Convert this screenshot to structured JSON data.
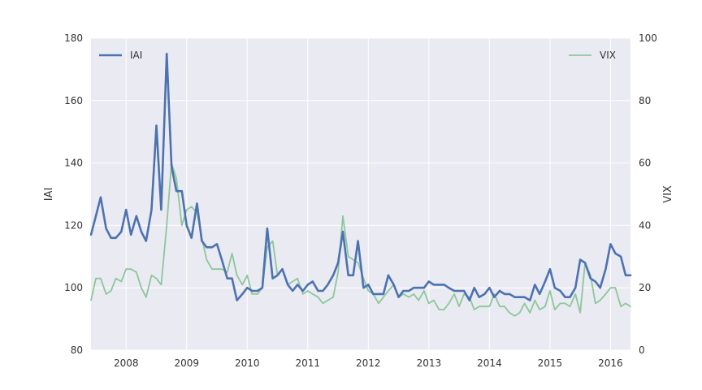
{
  "chart_data": {
    "type": "line",
    "ylabel_left": "IAI",
    "ylabel_right": "VIX",
    "x_range": [
      2007.42,
      2016.33
    ],
    "x_ticks": [
      2008,
      2009,
      2010,
      2011,
      2012,
      2013,
      2014,
      2015,
      2016
    ],
    "x_tick_labels": [
      "2008",
      "2009",
      "2010",
      "2011",
      "2012",
      "2013",
      "2014",
      "2015",
      "2016"
    ],
    "y_left_range": [
      80,
      180
    ],
    "y_left_ticks": [
      80,
      100,
      120,
      140,
      160,
      180
    ],
    "y_left_tick_labels": [
      "80",
      "100",
      "120",
      "140",
      "160",
      "180"
    ],
    "y_right_range": [
      0,
      100
    ],
    "y_right_ticks": [
      0,
      20,
      40,
      60,
      80,
      100
    ],
    "y_right_tick_labels": [
      "0",
      "20",
      "40",
      "60",
      "80",
      "100"
    ],
    "grid": true,
    "background": "#eaeaf2",
    "series": [
      {
        "name": "IAI",
        "axis": "left",
        "color": "#4c72b0",
        "legend_position": "top-left",
        "x": [
          2007.42,
          2007.5,
          2007.58,
          2007.67,
          2007.75,
          2007.83,
          2007.92,
          2008.0,
          2008.08,
          2008.17,
          2008.25,
          2008.33,
          2008.42,
          2008.5,
          2008.58,
          2008.67,
          2008.75,
          2008.83,
          2008.92,
          2009.0,
          2009.08,
          2009.17,
          2009.25,
          2009.33,
          2009.42,
          2009.5,
          2009.58,
          2009.67,
          2009.75,
          2009.83,
          2009.92,
          2010.0,
          2010.08,
          2010.17,
          2010.25,
          2010.33,
          2010.42,
          2010.5,
          2010.58,
          2010.67,
          2010.75,
          2010.83,
          2010.92,
          2011.0,
          2011.08,
          2011.17,
          2011.25,
          2011.33,
          2011.42,
          2011.5,
          2011.58,
          2011.67,
          2011.75,
          2011.83,
          2011.92,
          2012.0,
          2012.08,
          2012.17,
          2012.25,
          2012.33,
          2012.42,
          2012.5,
          2012.58,
          2012.67,
          2012.75,
          2012.83,
          2012.92,
          2013.0,
          2013.08,
          2013.17,
          2013.25,
          2013.33,
          2013.42,
          2013.5,
          2013.58,
          2013.67,
          2013.75,
          2013.83,
          2013.92,
          2014.0,
          2014.08,
          2014.17,
          2014.25,
          2014.33,
          2014.42,
          2014.5,
          2014.58,
          2014.67,
          2014.75,
          2014.83,
          2014.92,
          2015.0,
          2015.08,
          2015.17,
          2015.25,
          2015.33,
          2015.42,
          2015.5,
          2015.58,
          2015.67,
          2015.75,
          2015.83,
          2015.92,
          2016.0,
          2016.08,
          2016.17,
          2016.25,
          2016.33
        ],
        "values": [
          117,
          123,
          129,
          119,
          116,
          116,
          118,
          125,
          117,
          123,
          118,
          115,
          125,
          152,
          125,
          175,
          139,
          131,
          131,
          120,
          116,
          127,
          115,
          113,
          113,
          114,
          109,
          103,
          103,
          96,
          98,
          100,
          99,
          99,
          100,
          119,
          103,
          104,
          106,
          101,
          99,
          101,
          99,
          101,
          102,
          99,
          99,
          101,
          104,
          108,
          118,
          104,
          104,
          115,
          100,
          101,
          98,
          98,
          98,
          104,
          101,
          97,
          99,
          99,
          100,
          100,
          100,
          102,
          101,
          101,
          101,
          100,
          99,
          99,
          99,
          96,
          100,
          97,
          98,
          100,
          97,
          99,
          98,
          98,
          97,
          97,
          97,
          96,
          101,
          98,
          102,
          106,
          100,
          99,
          97,
          97,
          100,
          109,
          108,
          103,
          102,
          100,
          106,
          114,
          111,
          110,
          104,
          104
        ]
      },
      {
        "name": "VIX",
        "axis": "right",
        "color": "#8cc79b",
        "legend_position": "top-right",
        "x": [
          2007.42,
          2007.5,
          2007.58,
          2007.67,
          2007.75,
          2007.83,
          2007.92,
          2008.0,
          2008.08,
          2008.17,
          2008.25,
          2008.33,
          2008.42,
          2008.5,
          2008.58,
          2008.67,
          2008.75,
          2008.83,
          2008.92,
          2009.0,
          2009.08,
          2009.17,
          2009.25,
          2009.33,
          2009.42,
          2009.5,
          2009.58,
          2009.67,
          2009.75,
          2009.83,
          2009.92,
          2010.0,
          2010.08,
          2010.17,
          2010.25,
          2010.33,
          2010.42,
          2010.5,
          2010.58,
          2010.67,
          2010.75,
          2010.83,
          2010.92,
          2011.0,
          2011.08,
          2011.17,
          2011.25,
          2011.33,
          2011.42,
          2011.5,
          2011.58,
          2011.67,
          2011.75,
          2011.83,
          2011.92,
          2012.0,
          2012.08,
          2012.17,
          2012.25,
          2012.33,
          2012.42,
          2012.5,
          2012.58,
          2012.67,
          2012.75,
          2012.83,
          2012.92,
          2013.0,
          2013.08,
          2013.17,
          2013.25,
          2013.33,
          2013.42,
          2013.5,
          2013.58,
          2013.67,
          2013.75,
          2013.83,
          2013.92,
          2014.0,
          2014.08,
          2014.17,
          2014.25,
          2014.33,
          2014.42,
          2014.5,
          2014.58,
          2014.67,
          2014.75,
          2014.83,
          2014.92,
          2015.0,
          2015.08,
          2015.17,
          2015.25,
          2015.33,
          2015.42,
          2015.5,
          2015.58,
          2015.67,
          2015.75,
          2015.83,
          2015.92,
          2016.0,
          2016.08,
          2016.17,
          2016.25,
          2016.33
        ],
        "values": [
          16,
          23,
          23,
          18,
          19,
          23,
          22,
          26,
          26,
          25,
          20,
          17,
          24,
          23,
          21,
          40,
          60,
          55,
          40,
          45,
          46,
          44,
          36,
          29,
          26,
          26,
          26,
          25,
          31,
          24,
          21,
          24,
          18,
          18,
          20,
          33,
          35,
          24,
          26,
          21,
          22,
          23,
          18,
          19,
          18,
          17,
          15,
          16,
          17,
          25,
          43,
          30,
          29,
          28,
          23,
          19,
          18,
          15,
          17,
          19,
          21,
          17,
          18,
          17,
          18,
          16,
          19,
          15,
          16,
          13,
          13,
          15,
          18,
          14,
          18,
          17,
          13,
          14,
          14,
          14,
          18,
          14,
          14,
          12,
          11,
          12,
          15,
          12,
          16,
          13,
          14,
          19,
          13,
          15,
          15,
          14,
          18,
          12,
          28,
          24,
          15,
          16,
          18,
          20,
          20,
          14,
          15,
          14
        ]
      }
    ]
  }
}
